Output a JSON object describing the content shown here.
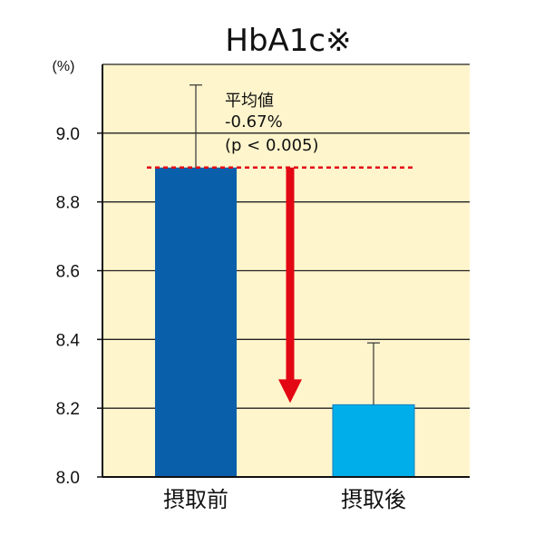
{
  "chart_data": {
    "type": "bar",
    "title": "HbA1c※",
    "yunit": "(%)",
    "ylim": [
      8.0,
      9.2
    ],
    "yticks": [
      8.0,
      8.2,
      8.4,
      8.6,
      8.8,
      9.0
    ],
    "ytick_labels": [
      "8.0",
      "8.2",
      "8.4",
      "8.6",
      "8.8",
      "9.0"
    ],
    "categories": [
      "摂取前",
      "摂取後"
    ],
    "values": [
      8.9,
      8.21
    ],
    "error_upper": [
      9.14,
      8.39
    ],
    "grid": true,
    "annotation": {
      "lines": [
        "平均値",
        "-0.67%",
        "(p < 0.005)"
      ]
    },
    "colors": {
      "background": "#fff5cc",
      "bar_before": "#0a5fab",
      "bar_after": "#00aeea",
      "arrow": "#e30613",
      "reference_line": "#e30613",
      "grid": "#222222"
    }
  }
}
